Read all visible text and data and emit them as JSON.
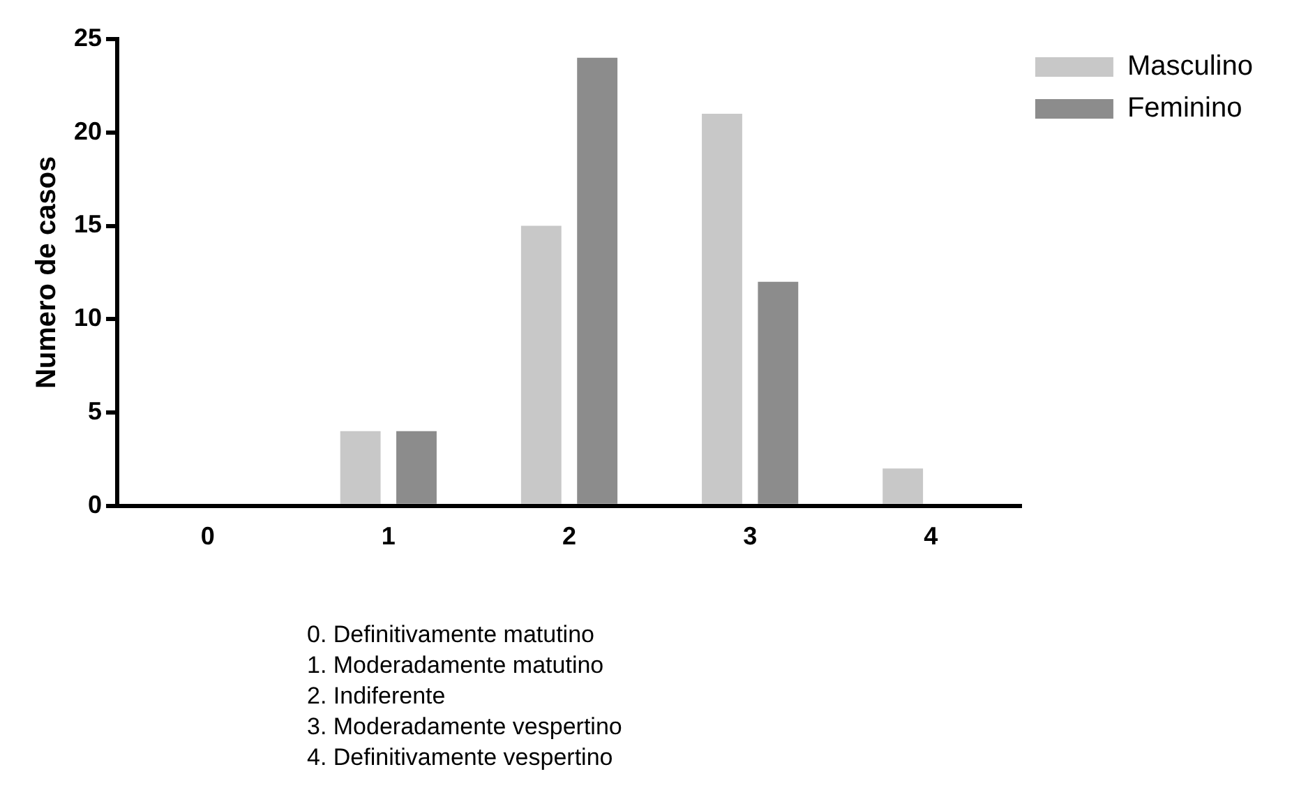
{
  "chart_data": {
    "type": "bar",
    "ylabel": "Numero de casos",
    "categories": [
      "0",
      "1",
      "2",
      "3",
      "4"
    ],
    "series": [
      {
        "name": "Masculino",
        "color": "#c8c8c8",
        "values": [
          0,
          4,
          15,
          21,
          2
        ]
      },
      {
        "name": "Feminino",
        "color": "#8c8c8c",
        "values": [
          0,
          4,
          24,
          12,
          0
        ]
      }
    ],
    "ylim": [
      0,
      25
    ],
    "yticks": [
      0,
      5,
      10,
      15,
      20,
      25
    ],
    "grid": false,
    "legend": "top right",
    "annotations": [
      "0. Definitivamente matutino",
      "1. Moderadamente matutino",
      "2. Indiferente",
      "3. Moderadamente vespertino",
      "4. Definitivamente vespertino"
    ]
  }
}
